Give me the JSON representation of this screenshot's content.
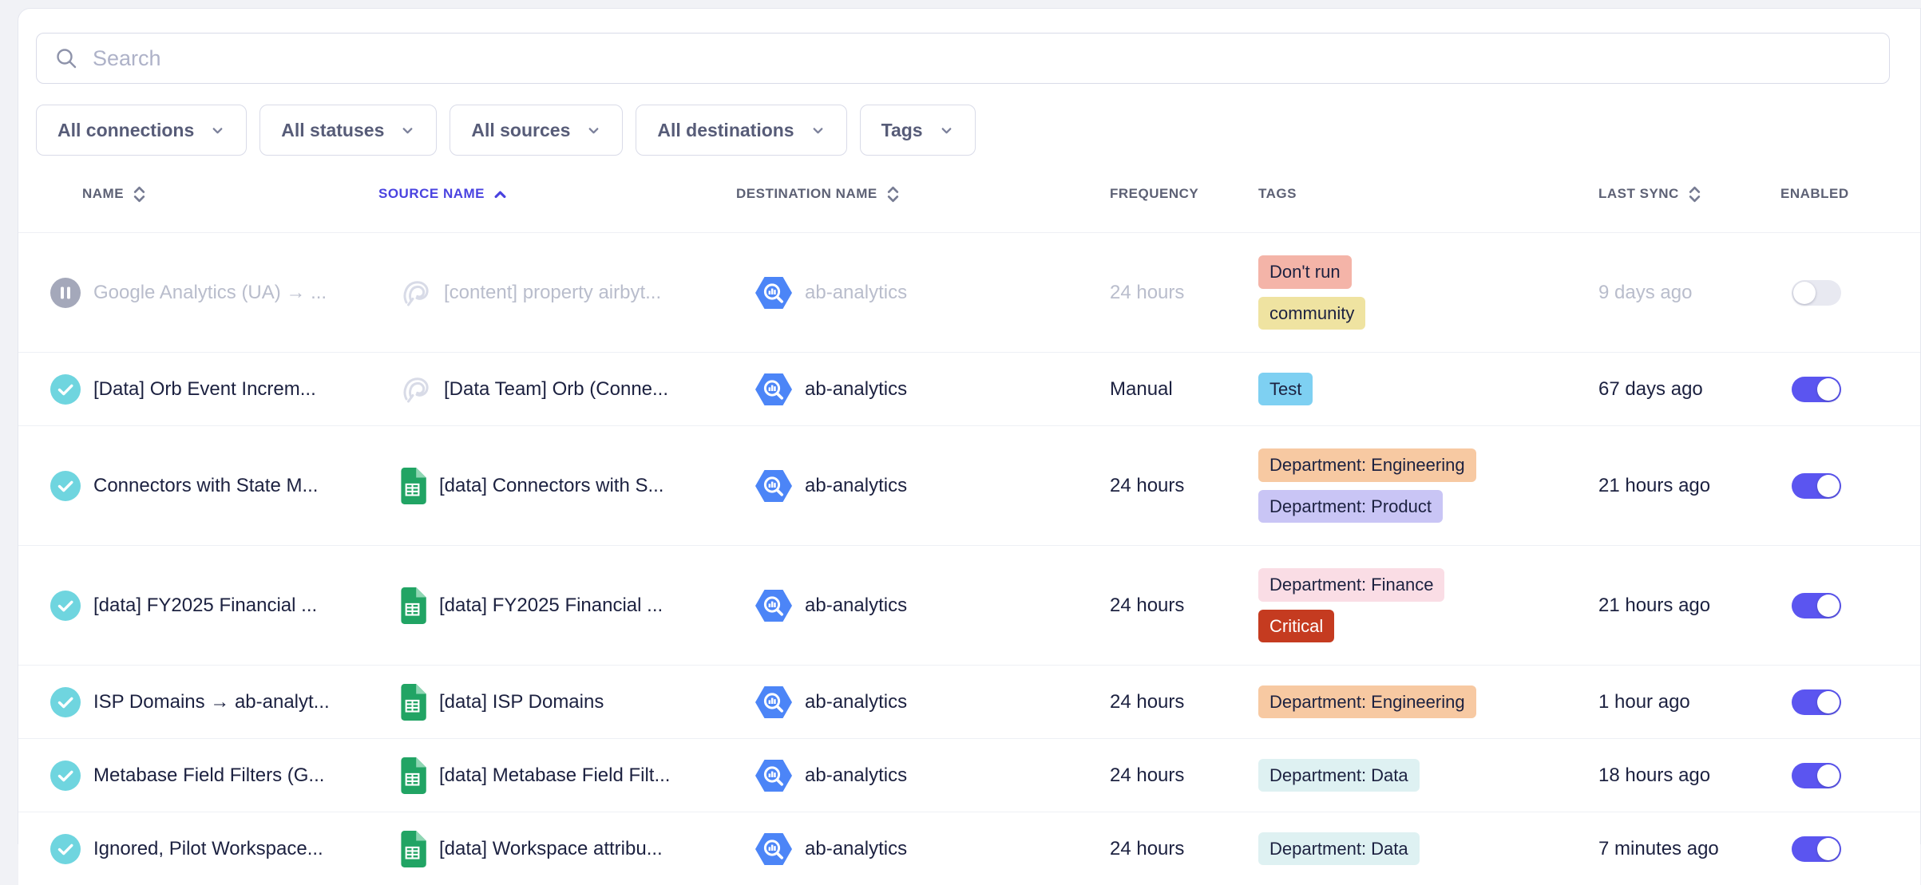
{
  "search": {
    "placeholder": "Search"
  },
  "filters": [
    {
      "label": "All connections"
    },
    {
      "label": "All statuses"
    },
    {
      "label": "All sources"
    },
    {
      "label": "All destinations"
    },
    {
      "label": "Tags"
    }
  ],
  "colors": {
    "active_sort": "#4a43e0",
    "toggle_on": "#5b55f0",
    "status_active": "#6fd5df",
    "status_paused": "#a4a8ba",
    "bigquery_blue": "#4c85f7",
    "sheets_green": "#21a464"
  },
  "icons": {
    "search": "magnifier",
    "filter_chevron": "chevron-down",
    "sort_inactive": "chevron-up-down",
    "sort_active": "chevron-up",
    "status_active": "check-circle",
    "status_paused": "pause-circle",
    "source_airbyte": "airbyte-octopus",
    "source_sheets": "google-sheets-file",
    "destination_bigquery": "bigquery-hexagon-magnifier",
    "enabled": "toggle-switch"
  },
  "table": {
    "columns": [
      {
        "key": "name",
        "label": "NAME",
        "sort": "both"
      },
      {
        "key": "source-name",
        "label": "SOURCE NAME",
        "sort": "asc"
      },
      {
        "key": "destination-name",
        "label": "DESTINATION NAME",
        "sort": "both"
      },
      {
        "key": "frequency",
        "label": "FREQUENCY",
        "sort": "none"
      },
      {
        "key": "tags",
        "label": "TAGS",
        "sort": "none"
      },
      {
        "key": "last-sync",
        "label": "LAST SYNC",
        "sort": "both"
      },
      {
        "key": "enabled",
        "label": "ENABLED",
        "sort": "none"
      }
    ],
    "sorted_by": "SOURCE NAME",
    "sort_direction": "ascending",
    "rows": [
      {
        "status": "paused",
        "muted": true,
        "name": "Google Analytics (UA) → ...",
        "source_icon": "airbyte",
        "source": "[content] property airbyt...",
        "destination_icon": "bigquery",
        "destination": "ab-analytics",
        "frequency": "24 hours",
        "tags": [
          {
            "label": "Don't run",
            "bg": "#f4b4a8",
            "fg": "#1c2140"
          },
          {
            "label": "community",
            "bg": "#efe3a1",
            "fg": "#1c2140"
          }
        ],
        "last_sync": "9 days ago",
        "enabled": false
      },
      {
        "status": "active",
        "muted": false,
        "name": "[Data] Orb Event Increm...",
        "source_icon": "airbyte",
        "source": "[Data Team] Orb (Conne...",
        "destination_icon": "bigquery",
        "destination": "ab-analytics",
        "frequency": "Manual",
        "tags": [
          {
            "label": "Test",
            "bg": "#7ed0f2",
            "fg": "#1c2140"
          }
        ],
        "last_sync": "67 days ago",
        "enabled": true
      },
      {
        "status": "active",
        "muted": false,
        "name": "Connectors with State M...",
        "source_icon": "sheets",
        "source": "[data] Connectors with S...",
        "destination_icon": "bigquery",
        "destination": "ab-analytics",
        "frequency": "24 hours",
        "tags": [
          {
            "label": "Department: Engineering",
            "bg": "#f7c9a2",
            "fg": "#1c2140"
          },
          {
            "label": "Department: Product",
            "bg": "#c9c5f5",
            "fg": "#1c2140"
          }
        ],
        "last_sync": "21 hours ago",
        "enabled": true
      },
      {
        "status": "active",
        "muted": false,
        "name": "[data] FY2025 Financial ...",
        "source_icon": "sheets",
        "source": "[data] FY2025 Financial ...",
        "destination_icon": "bigquery",
        "destination": "ab-analytics",
        "frequency": "24 hours",
        "tags": [
          {
            "label": "Department: Finance",
            "bg": "#fadde5",
            "fg": "#1c2140"
          },
          {
            "label": "Critical",
            "bg": "#c53b20",
            "fg": "#ffffff"
          }
        ],
        "last_sync": "21 hours ago",
        "enabled": true
      },
      {
        "status": "active",
        "muted": false,
        "name": "ISP Domains → ab-analyt...",
        "source_icon": "sheets",
        "source": "[data] ISP Domains",
        "destination_icon": "bigquery",
        "destination": "ab-analytics",
        "frequency": "24 hours",
        "tags": [
          {
            "label": "Department: Engineering",
            "bg": "#f7c9a2",
            "fg": "#1c2140"
          }
        ],
        "last_sync": "1 hour ago",
        "enabled": true
      },
      {
        "status": "active",
        "muted": false,
        "name": "Metabase Field Filters (G...",
        "source_icon": "sheets",
        "source": "[data] Metabase Field Filt...",
        "destination_icon": "bigquery",
        "destination": "ab-analytics",
        "frequency": "24 hours",
        "tags": [
          {
            "label": "Department: Data",
            "bg": "#def1f2",
            "fg": "#1c2140"
          }
        ],
        "last_sync": "18 hours ago",
        "enabled": true
      },
      {
        "status": "active",
        "muted": false,
        "name": "Ignored, Pilot Workspace...",
        "source_icon": "sheets",
        "source": "[data] Workspace attribu...",
        "destination_icon": "bigquery",
        "destination": "ab-analytics",
        "frequency": "24 hours",
        "tags": [
          {
            "label": "Department: Data",
            "bg": "#def1f2",
            "fg": "#1c2140"
          }
        ],
        "last_sync": "7 minutes ago",
        "enabled": true
      }
    ]
  }
}
